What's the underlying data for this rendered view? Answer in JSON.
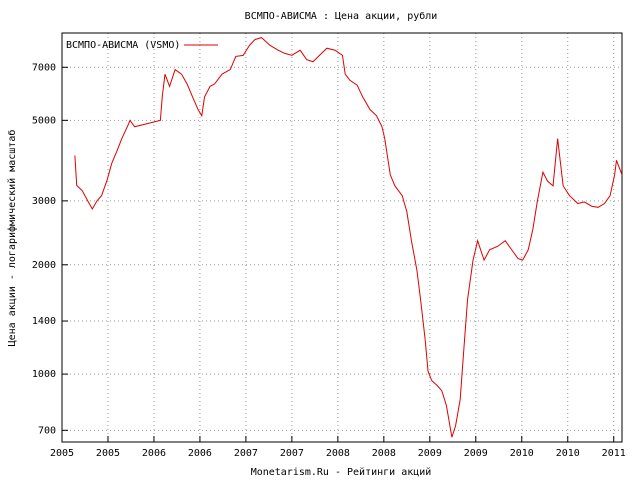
{
  "chart_data": {
    "type": "line",
    "title": "ВСМПО-АВИСМА : Цена акции, рубли",
    "x_label": "Monetarism.Ru - Рейтинги акций",
    "y_label": "Цена акции - логарифмический масштаб",
    "log_y": true,
    "grid": true,
    "legend": "top-left",
    "xlim": [
      2005,
      2011.09
    ],
    "ylim": [
      650,
      8700
    ],
    "xticks": [
      2005,
      {
        "value": 2005.5,
        "label": "2005"
      },
      2006,
      {
        "value": 2006.5,
        "label": "2006"
      },
      2007,
      {
        "value": 2007.5,
        "label": "2007"
      },
      2008,
      {
        "value": 2008.5,
        "label": "2008"
      },
      2009,
      {
        "value": 2009.5,
        "label": "2009"
      },
      2010,
      {
        "value": 2010.5,
        "label": "2010"
      },
      2011
    ],
    "yticks": [
      700,
      1000,
      1400,
      2000,
      3000,
      5000,
      7000
    ],
    "x": [
      2005.14,
      2005.16,
      2005.22,
      2005.28,
      2005.33,
      2005.38,
      2005.43,
      2005.49,
      2005.54,
      2005.6,
      2005.65,
      2005.71,
      2005.74,
      2005.79,
      2006.07,
      2006.09,
      2006.12,
      2006.17,
      2006.23,
      2006.3,
      2006.36,
      2006.42,
      2006.48,
      2006.52,
      2006.55,
      2006.61,
      2006.66,
      2006.74,
      2006.83,
      2006.89,
      2006.97,
      2007.04,
      2007.1,
      2007.17,
      2007.26,
      2007.35,
      2007.42,
      2007.5,
      2007.59,
      2007.66,
      2007.73,
      2007.8,
      2007.88,
      2007.97,
      2008.05,
      2008.08,
      2008.13,
      2008.21,
      2008.27,
      2008.35,
      2008.42,
      2008.48,
      2008.51,
      2008.57,
      2008.62,
      2008.7,
      2008.75,
      2008.8,
      2008.86,
      2008.9,
      2008.95,
      2008.98,
      2009.02,
      2009.08,
      2009.13,
      2009.18,
      2009.24,
      2009.28,
      2009.33,
      2009.37,
      2009.41,
      2009.47,
      2009.52,
      2009.59,
      2009.65,
      2009.74,
      2009.82,
      2009.89,
      2009.96,
      2010.01,
      2010.07,
      2010.12,
      2010.17,
      2010.23,
      2010.28,
      2010.34,
      2010.39,
      2010.45,
      2010.52,
      2010.61,
      2010.68,
      2010.76,
      2010.83,
      2010.9,
      2010.96,
      2011.01,
      2011.03,
      2011.09
    ],
    "series": [
      {
        "name": "ВСМПО-АВИСМА (VSMO)",
        "color": "#e00000",
        "values": [
          4000,
          3310,
          3200,
          3000,
          2850,
          3000,
          3100,
          3420,
          3800,
          4130,
          4450,
          4800,
          5000,
          4800,
          5000,
          5800,
          6700,
          6200,
          6900,
          6700,
          6300,
          5800,
          5350,
          5150,
          5800,
          6200,
          6300,
          6700,
          6900,
          7500,
          7550,
          8050,
          8350,
          8450,
          8050,
          7800,
          7650,
          7550,
          7800,
          7350,
          7250,
          7550,
          7900,
          7800,
          7550,
          6700,
          6450,
          6250,
          5800,
          5350,
          5150,
          4800,
          4450,
          3540,
          3300,
          3100,
          2800,
          2330,
          1930,
          1600,
          1240,
          1020,
          960,
          930,
          900,
          820,
          670,
          720,
          850,
          1170,
          1600,
          2060,
          2330,
          2060,
          2200,
          2250,
          2330,
          2200,
          2080,
          2060,
          2200,
          2500,
          3000,
          3600,
          3400,
          3300,
          4450,
          3300,
          3100,
          2950,
          2980,
          2900,
          2880,
          2950,
          3100,
          3540,
          3880,
          3540
        ]
      }
    ]
  }
}
